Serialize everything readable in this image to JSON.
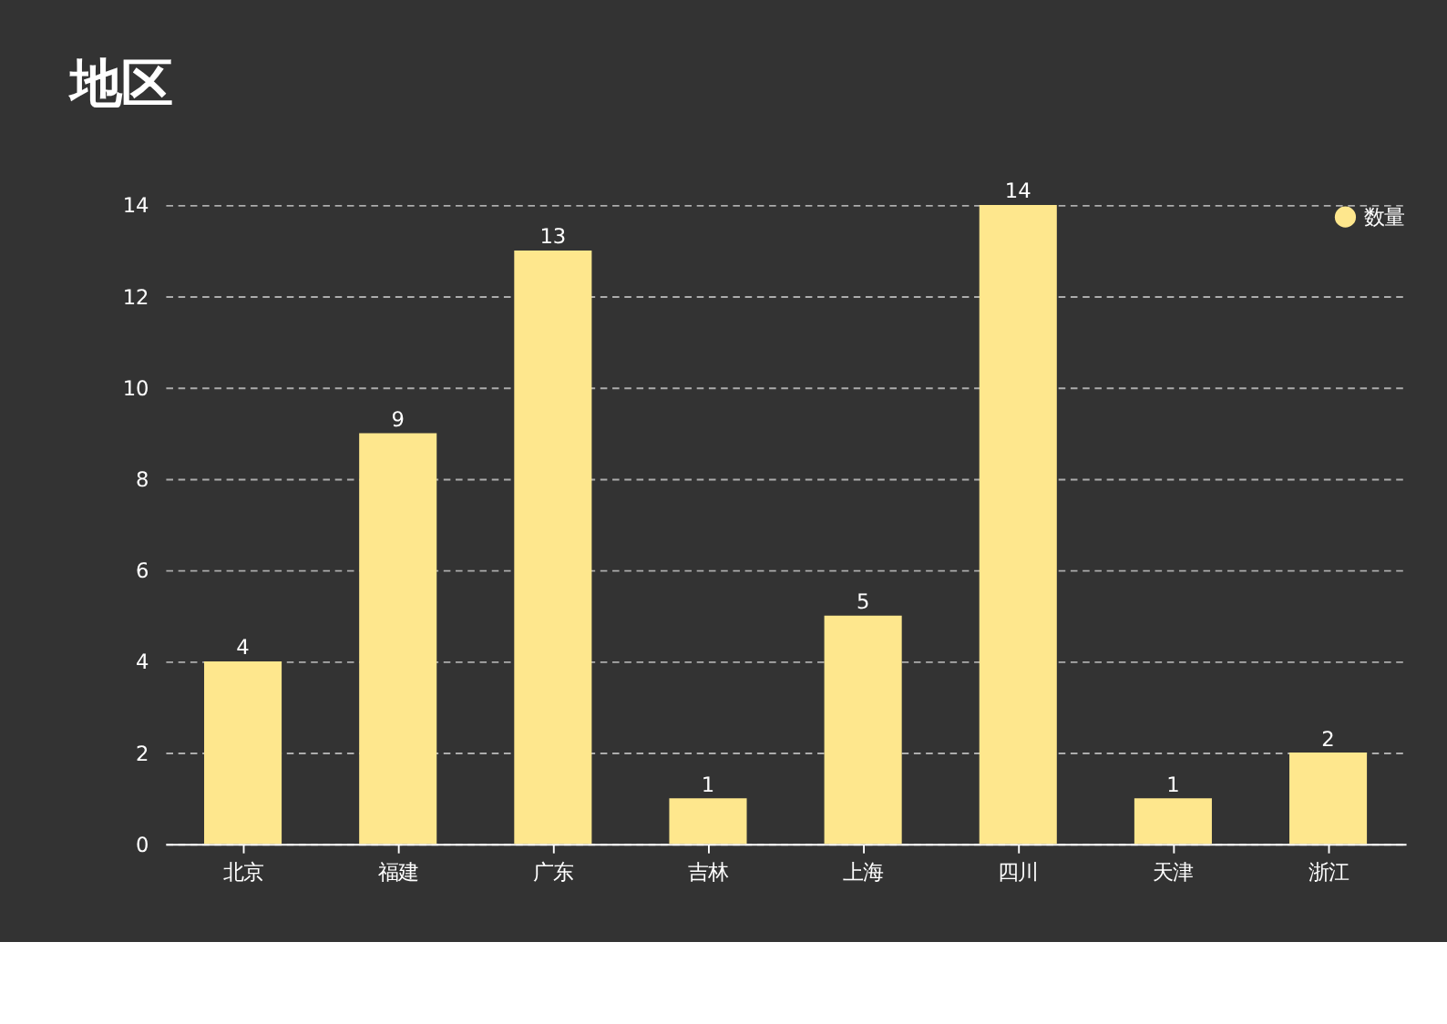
{
  "chart_data": {
    "type": "bar",
    "title": "地区",
    "categories": [
      "北京",
      "福建",
      "广东",
      "吉林",
      "上海",
      "四川",
      "天津",
      "浙江"
    ],
    "series": [
      {
        "name": "数量",
        "color": "#fee78d",
        "values": [
          4,
          9,
          13,
          1,
          5,
          14,
          1,
          2
        ]
      }
    ],
    "ylim": [
      0,
      14
    ],
    "yticks": [
      0,
      2,
      4,
      6,
      8,
      10,
      12,
      14
    ],
    "grid": "y",
    "legend": "top right",
    "data_labels": true
  }
}
